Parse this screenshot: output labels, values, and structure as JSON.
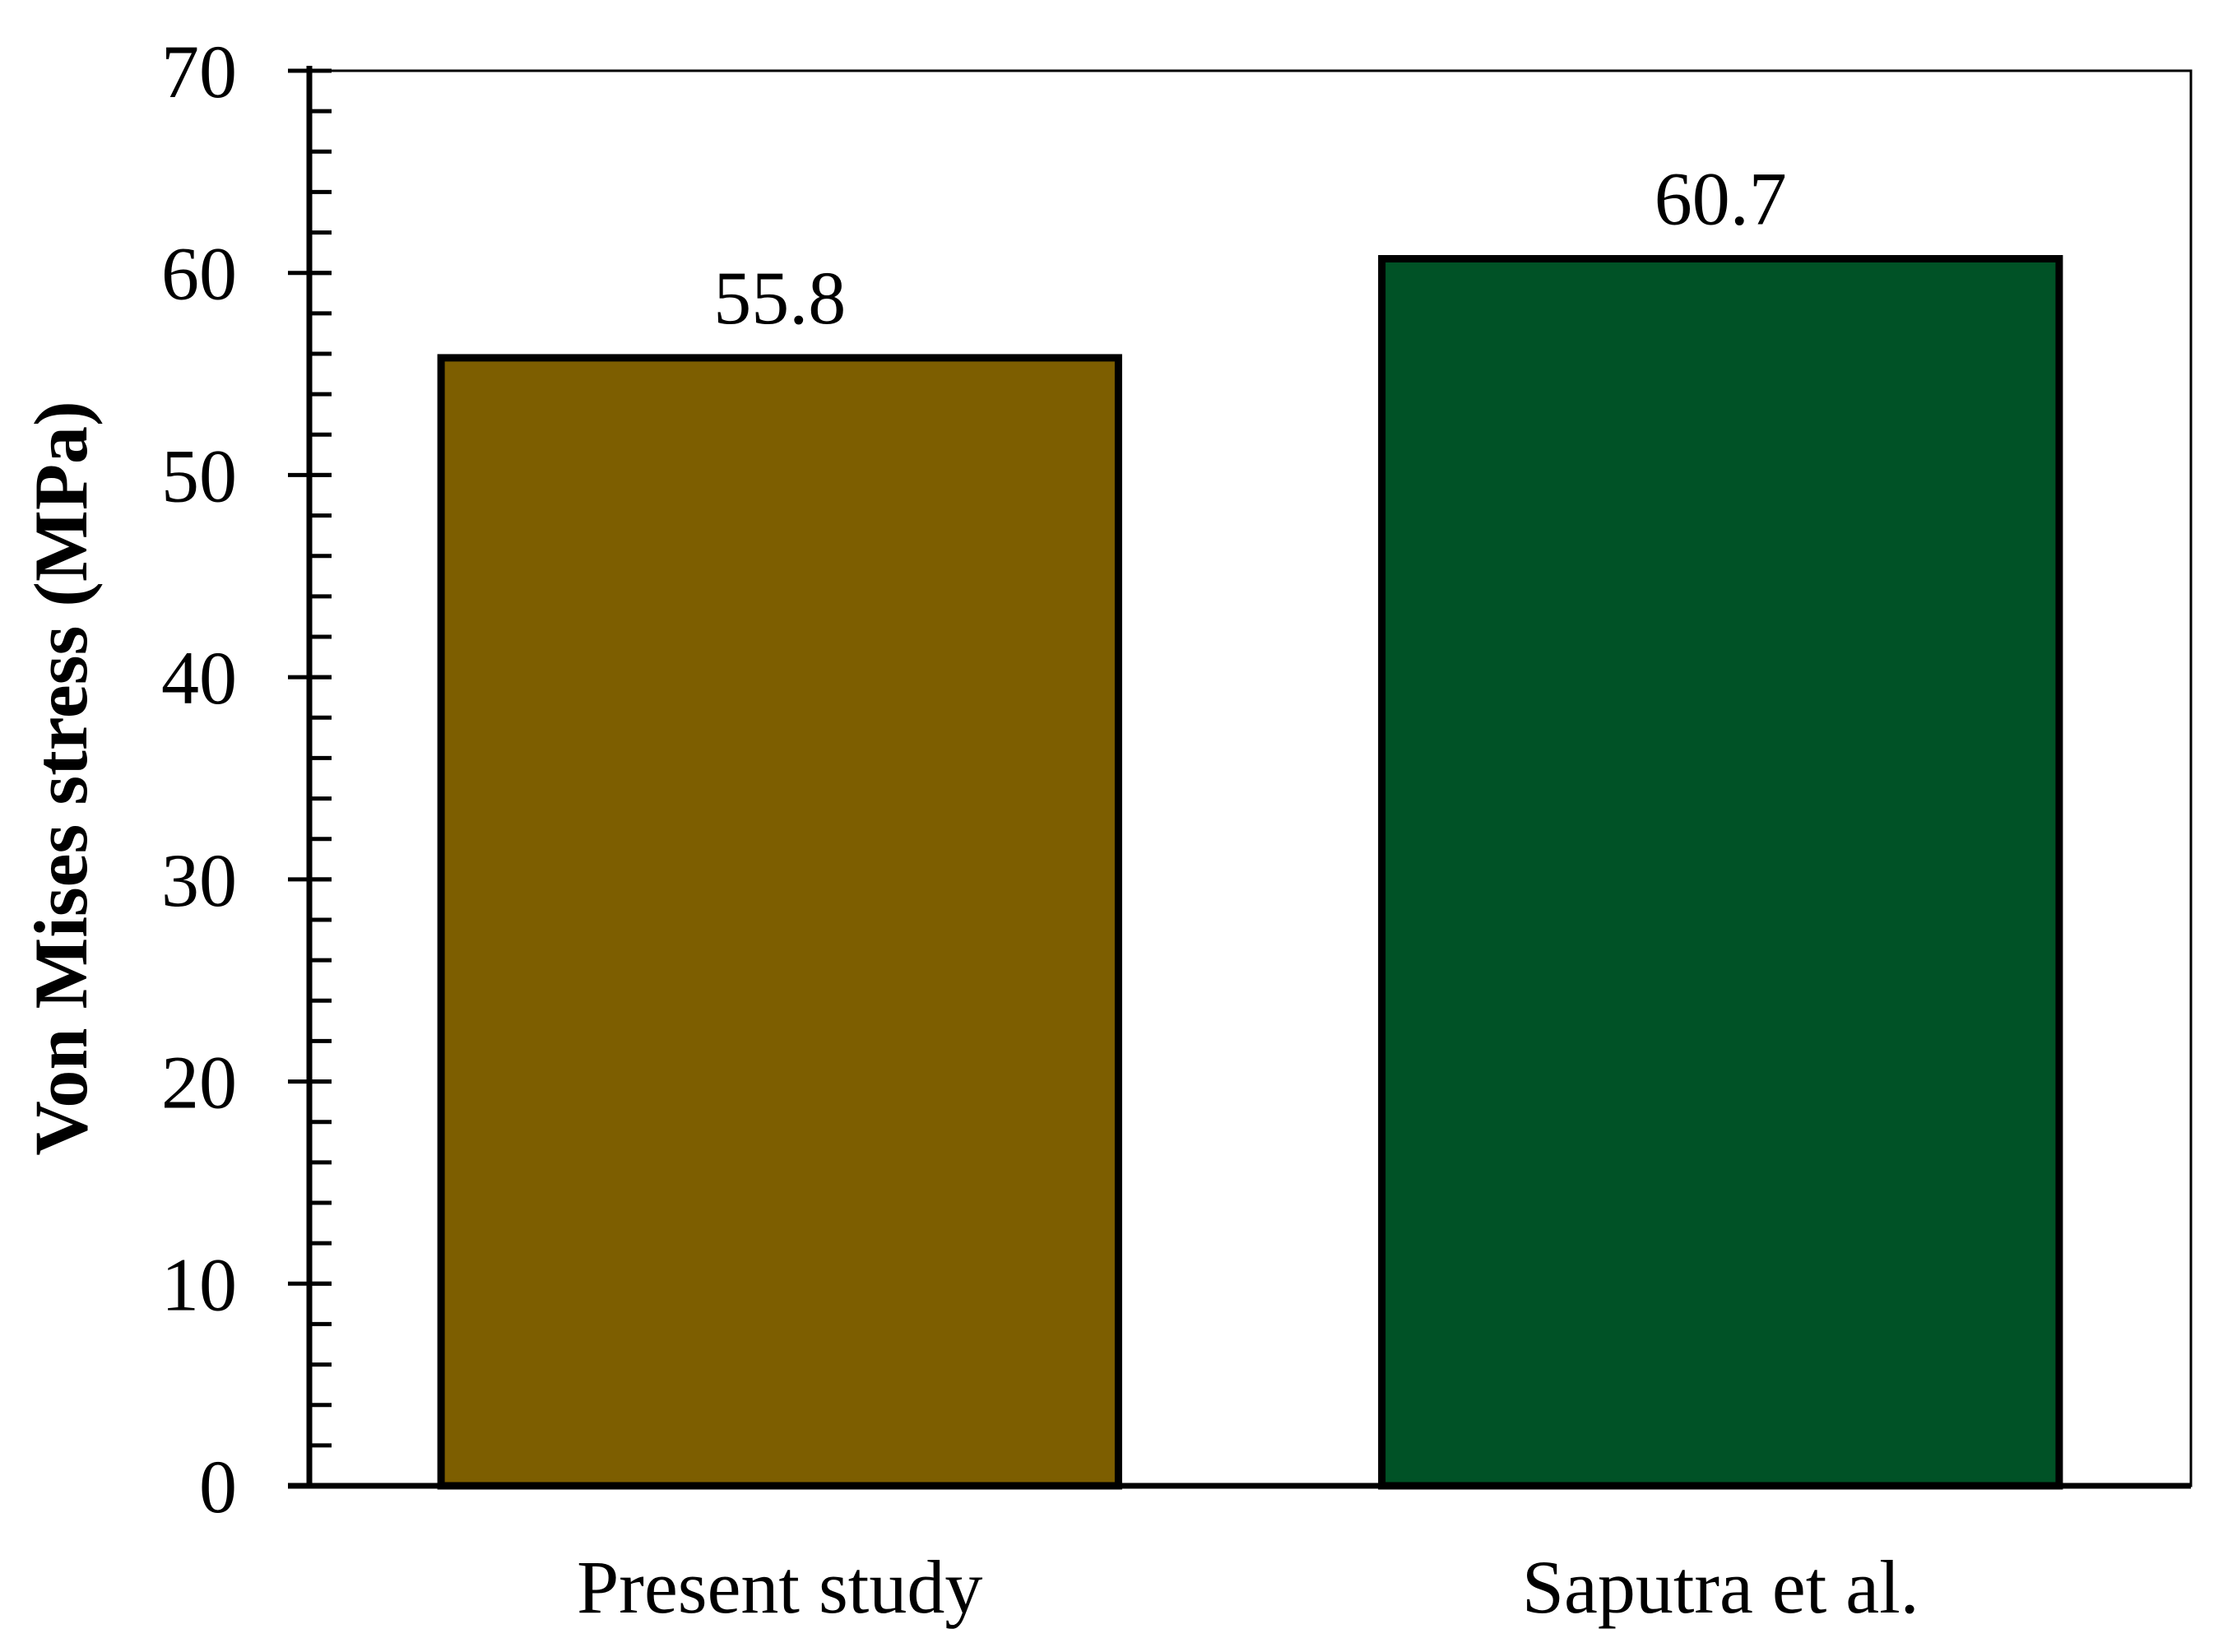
{
  "chart_data": {
    "type": "bar",
    "categories": [
      "Present study",
      "Saputra et al."
    ],
    "values": [
      55.8,
      60.7
    ],
    "value_labels": [
      "55.8",
      "60.7"
    ],
    "bar_colors": [
      "#7d5e00",
      "#005226"
    ],
    "title": "",
    "xlabel": "",
    "ylabel": "Von Mises stress (MPa)",
    "ylim": [
      0,
      70
    ],
    "y_major_ticks": [
      0,
      10,
      20,
      30,
      40,
      50,
      60,
      70
    ],
    "y_tick_labels": [
      "0",
      "10",
      "20",
      "30",
      "40",
      "50",
      "60",
      "70"
    ],
    "y_minor_tick_step": 2,
    "grid": false,
    "legend": "none"
  }
}
